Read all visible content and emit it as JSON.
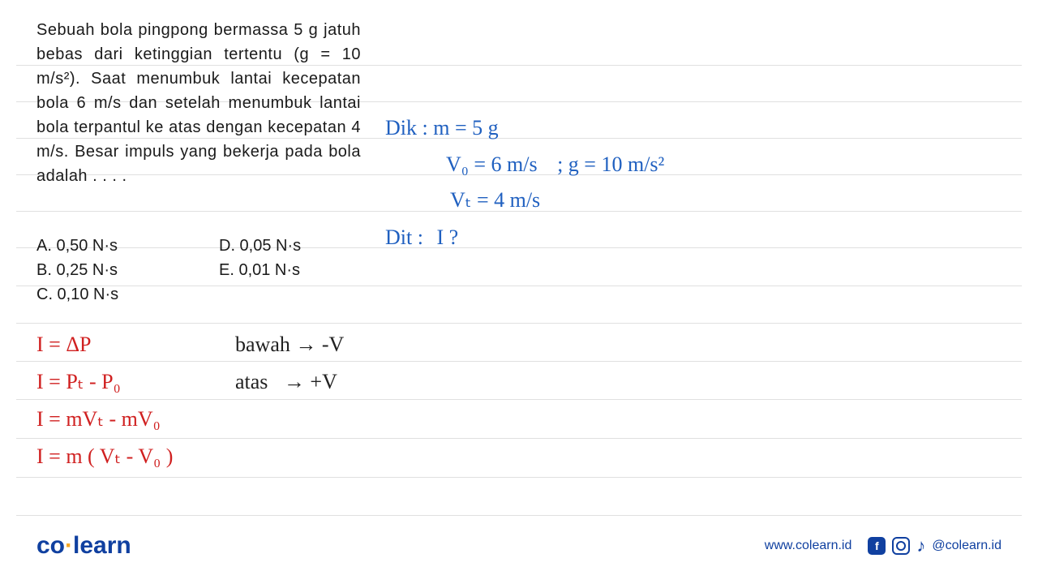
{
  "question": {
    "text": "Sebuah bola pingpong bermassa 5 g jatuh bebas dari ketinggian tertentu (g = 10 m/s²). Saat menumbuk lantai kecepatan bola 6 m/s dan setelah menumbuk lantai bola terpantul ke atas dengan kecepatan 4 m/s. Besar impuls yang bekerja pada bola adalah . . . ."
  },
  "options": {
    "a": "A.   0,50 N·s",
    "b": "B.   0,25 N·s",
    "c": "C.   0,10 N·s",
    "d": "D.   0,05 N·s",
    "e": "E.   0,01 N·s"
  },
  "given": {
    "dik_label": "Dik :",
    "mass": "m = 5 g",
    "v0": "V₀ = 6 m/s",
    "g": "; g = 10 m/s²",
    "vt": "Vₜ = 4 m/s",
    "dit_label": "Dit :",
    "dit_value": "I ?"
  },
  "work": {
    "line1": "I = ΔP",
    "line2": "I = Pₜ - P₀",
    "line3": "I = mVₜ - mV₀",
    "line4": "I = m ( Vₜ - V₀ )",
    "conv1": "bawah → -V",
    "conv2": "atas   → +V"
  },
  "footer": {
    "logo_co": "co",
    "logo_learn": "learn",
    "url": "www.colearn.id",
    "handle": "@colearn.id"
  },
  "style": {
    "blue": "#2060c0",
    "red": "#d02020",
    "black": "#222222",
    "line_color": "#e0e0e0",
    "bg": "#ffffff",
    "logo_blue": "#1040a0",
    "logo_dot": "#f5a623",
    "line_positions": [
      80,
      125,
      170,
      215,
      260,
      305,
      352,
      398,
      445,
      492,
      540,
      588,
      635
    ],
    "question_fontsize": 20,
    "hand_fontsize": 26
  }
}
